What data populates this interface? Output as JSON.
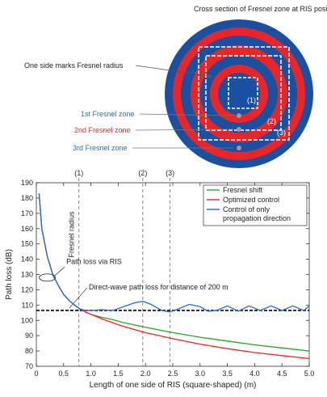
{
  "colors": {
    "blue": "#1b4fa0",
    "red": "#e8262a",
    "green": "#2ca02c",
    "lightblue": "#2b6cc4",
    "black": "#000000",
    "gray": "#808080"
  },
  "diagram": {
    "title": "Cross section of Fresnel zone at RIS position",
    "one_side_label": "One side marks Fresnel radius",
    "zones": [
      {
        "label": "1st Fresnel zone",
        "color": "#2b6cc4"
      },
      {
        "label": "2nd Fresnel zone",
        "color": "#e8262a"
      },
      {
        "label": "3rd Fresnel zone",
        "color": "#2b6cc4"
      }
    ],
    "square_labels": [
      "(1)",
      "(2)",
      "(3)"
    ]
  },
  "chart_data": {
    "type": "line",
    "xlabel": "Length of one side of RIS (square-shaped) (m)",
    "ylabel": "Path loss (dB)",
    "xlim": [
      0,
      5.0
    ],
    "ylim": [
      70,
      190
    ],
    "xticks": [
      "0",
      "0.5",
      "1.0",
      "1.5",
      "2.0",
      "2.5",
      "3.0",
      "3.5",
      "4.0",
      "4.5",
      "5.0"
    ],
    "yticks": [
      "70",
      "80",
      "90",
      "100",
      "110",
      "120",
      "130",
      "140",
      "150",
      "160",
      "170",
      "180",
      "190"
    ],
    "grid": false,
    "legend_position": "top-right",
    "series": [
      {
        "name": "Fresnel shift",
        "color": "#2ca02c",
        "x": [
          0.05,
          0.1,
          0.2,
          0.3,
          0.4,
          0.5,
          0.6,
          0.7,
          0.8,
          0.9,
          1.0,
          1.2,
          1.4,
          1.6,
          1.8,
          2.0,
          2.5,
          3.0,
          3.5,
          4.0,
          4.5,
          5.0
        ],
        "y": [
          183,
          160,
          142,
          130,
          123,
          117,
          113,
          110,
          107.5,
          105.5,
          104,
          102,
          100.5,
          98.5,
          97,
          95.5,
          92,
          89,
          86.5,
          84,
          82,
          80
        ]
      },
      {
        "name": "Optimized control",
        "color": "#e8262a",
        "x": [
          0.05,
          0.1,
          0.2,
          0.3,
          0.4,
          0.5,
          0.6,
          0.7,
          0.8,
          0.9,
          1.0,
          1.2,
          1.4,
          1.6,
          1.8,
          2.0,
          2.5,
          3.0,
          3.5,
          4.0,
          4.5,
          5.0
        ],
        "y": [
          183,
          160,
          142,
          130,
          123,
          117,
          113,
          110,
          107.5,
          105.5,
          104,
          101,
          98.5,
          96,
          94,
          92,
          88,
          84.5,
          81.5,
          79,
          77,
          75
        ]
      },
      {
        "name": "Control of only propagation direction",
        "color": "#2b6cc4",
        "x": [
          0.05,
          0.1,
          0.2,
          0.3,
          0.4,
          0.5,
          0.6,
          0.7,
          0.8,
          0.9,
          1.0,
          1.2,
          1.4,
          1.6,
          1.8,
          1.95,
          2.1,
          2.3,
          2.45,
          2.6,
          2.8,
          3.0,
          3.15,
          3.3,
          3.5,
          3.7,
          3.9,
          4.1,
          4.3,
          4.5,
          4.7,
          4.9,
          5.0
        ],
        "y": [
          183,
          160,
          142,
          130,
          123,
          117,
          113,
          110,
          107.5,
          106.5,
          106.5,
          107,
          106.5,
          109,
          111.5,
          112.5,
          110.5,
          106.5,
          105.5,
          107.5,
          110.5,
          109,
          106,
          106.5,
          109.5,
          106,
          109.5,
          106.5,
          109.5,
          106.5,
          109.5,
          106.5,
          109.5
        ]
      }
    ],
    "reference_line": {
      "y": 106.5,
      "label": "Direct-wave path loss for distance of 200 m",
      "color": "#000000"
    },
    "vertical_markers": [
      {
        "x": 0.78,
        "label": "(1)"
      },
      {
        "x": 1.95,
        "label": "(2)"
      },
      {
        "x": 2.45,
        "label": "(3)"
      }
    ],
    "annotations": {
      "fresnel_radius": "Fresnel radius",
      "path_loss_via_ris": "Path loss via RIS"
    }
  }
}
